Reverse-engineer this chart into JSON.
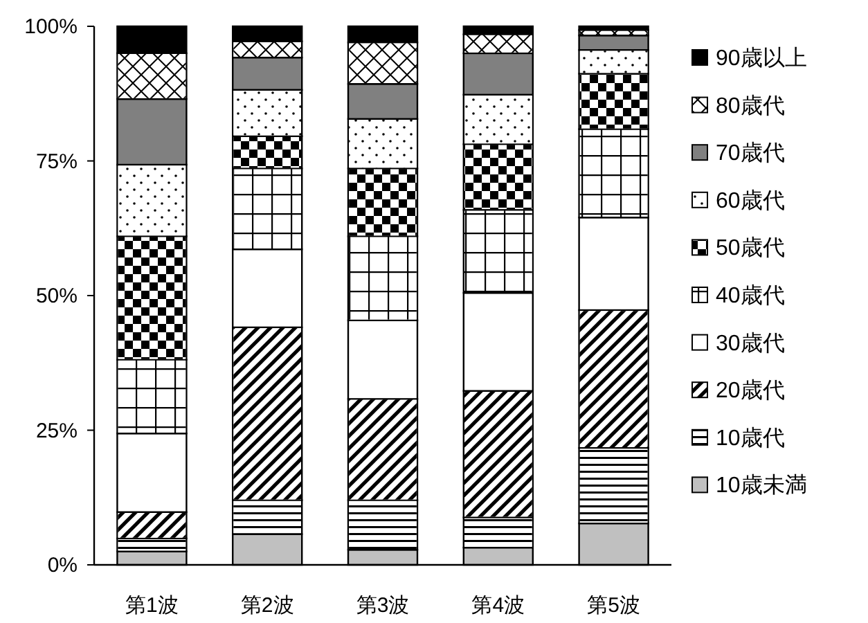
{
  "chart_data": {
    "type": "bar",
    "stacked": true,
    "categories": [
      "第1波",
      "第2波",
      "第3波",
      "第4波",
      "第5波"
    ],
    "ylim": [
      0,
      100
    ],
    "yticks": [
      {
        "value": 0,
        "label": "0%"
      },
      {
        "value": 25,
        "label": "25%"
      },
      {
        "value": 50,
        "label": "50%"
      },
      {
        "value": 75,
        "label": "75%"
      },
      {
        "value": 100,
        "label": "100%"
      }
    ],
    "grid": false,
    "legend": "right",
    "series": [
      {
        "name": "10歳未満",
        "color": "#c0c0c0",
        "values": [
          2.5,
          5.7,
          2.8,
          3.2,
          7.7
        ]
      },
      {
        "name": "10歳代",
        "color": "#ffffff",
        "values": [
          2.4,
          6.3,
          9.2,
          5.6,
          14.0
        ]
      },
      {
        "name": "20歳代",
        "color": "#ffffff",
        "values": [
          4.9,
          32.1,
          18.8,
          23.5,
          25.6
        ]
      },
      {
        "name": "30歳代",
        "color": "#ffffff",
        "values": [
          14.6,
          14.5,
          14.6,
          18.2,
          17.2
        ]
      },
      {
        "name": "40歳代",
        "color": "#ffffff",
        "values": [
          13.7,
          15.0,
          15.6,
          15.4,
          16.4
        ]
      },
      {
        "name": "50歳代",
        "color": "#ffffff",
        "values": [
          22.9,
          6.0,
          12.6,
          12.2,
          10.3
        ]
      },
      {
        "name": "60歳代",
        "color": "#ffffff",
        "values": [
          13.3,
          8.6,
          9.2,
          9.2,
          4.4
        ]
      },
      {
        "name": "70歳代",
        "color": "#808080",
        "values": [
          12.2,
          6.0,
          6.5,
          7.7,
          2.7
        ]
      },
      {
        "name": "80歳代",
        "color": "#ffffff",
        "values": [
          8.5,
          3.0,
          7.7,
          3.5,
          1.0
        ]
      },
      {
        "name": "90歳以上",
        "color": "#000000",
        "values": [
          5.0,
          2.8,
          3.0,
          1.5,
          0.7
        ]
      }
    ]
  }
}
